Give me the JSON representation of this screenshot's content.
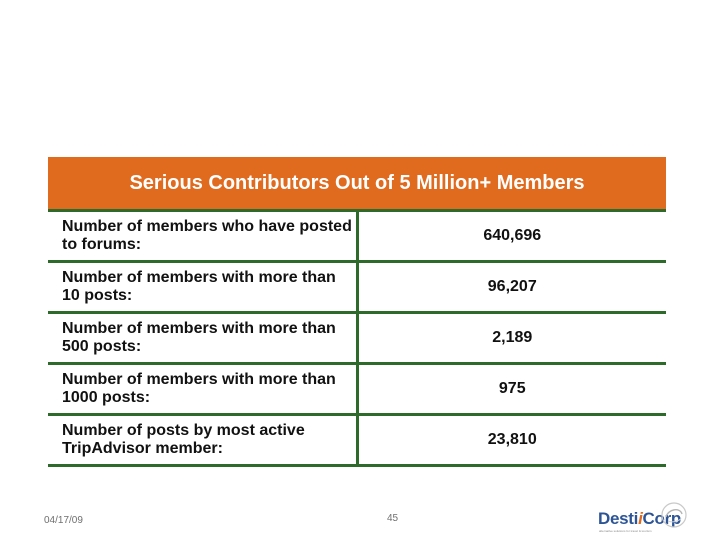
{
  "table": {
    "title": "Serious Contributors Out of 5 Million+ Members",
    "rows": [
      {
        "label": "Number of members who have posted to forums:",
        "value": "640,696"
      },
      {
        "label": "Number of members with more than 10 posts:",
        "value": "96,207"
      },
      {
        "label": "Number of members with more than 500 posts:",
        "value": "2,189"
      },
      {
        "label": "Number of members with more than 1000 posts:",
        "value": "975"
      },
      {
        "label": "Number of posts by most active TripAdvisor member:",
        "value": "23,810"
      }
    ]
  },
  "footer": {
    "date": "04/17/09",
    "page_number": "45"
  },
  "logo": {
    "part1": "Desti",
    "part2": "i",
    "part3": "Corp",
    "tagline": "alternative solutions for travel & tourism"
  },
  "colors": {
    "header_bg": "#e06a1d",
    "rule": "#2e6b2a",
    "logo_blue": "#2d5596"
  }
}
